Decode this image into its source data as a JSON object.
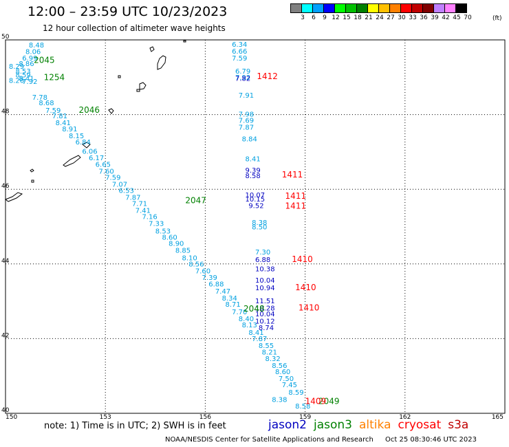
{
  "header": {
    "title": "12:00 – 23:59 UTC 10/23/2023",
    "subtitle": "12 hour collection of altimeter wave heights"
  },
  "legend": {
    "labels": [
      "3",
      "6",
      "9",
      "12",
      "15",
      "18",
      "21",
      "24",
      "27",
      "30",
      "33",
      "36",
      "39",
      "42",
      "45",
      "70"
    ],
    "unit": "(ft)",
    "colors": [
      "#808080",
      "#00ffff",
      "#00a0ff",
      "#0000ff",
      "#00ff00",
      "#00c000",
      "#008000",
      "#ffff00",
      "#ffc000",
      "#ff8000",
      "#ff0000",
      "#c00000",
      "#800000",
      "#c080ff",
      "#ff80ff",
      "#000000"
    ]
  },
  "map": {
    "lon_ticks": [
      "150",
      "153",
      "156",
      "159",
      "162",
      "165"
    ],
    "lat_ticks": [
      "40",
      "42",
      "44",
      "46",
      "48",
      "50"
    ],
    "lon_range": [
      150,
      165
    ],
    "lat_range": [
      40,
      50
    ],
    "grid": true,
    "colors": {
      "jason2": "#0000c0",
      "jason3": "#008000",
      "altika": "#ff8000",
      "cryosat": "#ff0000",
      "s3a": "#c00000",
      "swh_default": "#00a0e0"
    }
  },
  "tracks": [
    {
      "name": "track-west",
      "color": "#00a0e0",
      "points": [
        {
          "lon": 150.7,
          "lat": 49.8,
          "v": "8.48"
        },
        {
          "lon": 150.6,
          "lat": 49.62,
          "v": "8.06"
        },
        {
          "lon": 150.5,
          "lat": 49.45,
          "v": "6.99"
        },
        {
          "lon": 150.4,
          "lat": 49.3,
          "v": "8.86"
        },
        {
          "lon": 150.1,
          "lat": 49.23,
          "v": "8.29"
        },
        {
          "lon": 150.3,
          "lat": 49.1,
          "v": "8.53"
        },
        {
          "lon": 150.3,
          "lat": 49.0,
          "v": "8.59"
        },
        {
          "lon": 150.4,
          "lat": 48.9,
          "v": "8.41"
        },
        {
          "lon": 150.1,
          "lat": 48.85,
          "v": "8.26"
        },
        {
          "lon": 150.5,
          "lat": 48.82,
          "v": "7.92"
        },
        {
          "lon": 150.8,
          "lat": 48.4,
          "v": "7.78"
        },
        {
          "lon": 151.0,
          "lat": 48.25,
          "v": "8.68"
        },
        {
          "lon": 151.2,
          "lat": 48.05,
          "v": "7.59"
        },
        {
          "lon": 151.4,
          "lat": 47.9,
          "v": "7.81"
        },
        {
          "lon": 151.5,
          "lat": 47.72,
          "v": "8.41"
        },
        {
          "lon": 151.7,
          "lat": 47.55,
          "v": "8.91"
        },
        {
          "lon": 151.9,
          "lat": 47.37,
          "v": "8.15"
        },
        {
          "lon": 152.1,
          "lat": 47.2,
          "v": "6.84"
        },
        {
          "lon": 152.3,
          "lat": 46.95,
          "v": "6.06"
        },
        {
          "lon": 152.5,
          "lat": 46.78,
          "v": "6.17"
        },
        {
          "lon": 152.7,
          "lat": 46.6,
          "v": "6.65"
        },
        {
          "lon": 152.8,
          "lat": 46.42,
          "v": "7.60"
        },
        {
          "lon": 153.0,
          "lat": 46.25,
          "v": "7.59"
        },
        {
          "lon": 153.2,
          "lat": 46.07,
          "v": "7.07"
        },
        {
          "lon": 153.4,
          "lat": 45.9,
          "v": "6.53"
        },
        {
          "lon": 153.6,
          "lat": 45.72,
          "v": "7.87"
        },
        {
          "lon": 153.8,
          "lat": 45.55,
          "v": "7.71"
        },
        {
          "lon": 153.9,
          "lat": 45.37,
          "v": "7.41"
        },
        {
          "lon": 154.1,
          "lat": 45.2,
          "v": "7.16"
        },
        {
          "lon": 154.3,
          "lat": 45.02,
          "v": "7.33"
        },
        {
          "lon": 154.5,
          "lat": 44.82,
          "v": "8.53"
        },
        {
          "lon": 154.7,
          "lat": 44.65,
          "v": "8.60"
        },
        {
          "lon": 154.9,
          "lat": 44.48,
          "v": "8.90"
        },
        {
          "lon": 155.1,
          "lat": 44.3,
          "v": "8.85"
        },
        {
          "lon": 155.3,
          "lat": 44.1,
          "v": "8.10"
        },
        {
          "lon": 155.5,
          "lat": 43.93,
          "v": "8.56"
        },
        {
          "lon": 155.7,
          "lat": 43.75,
          "v": "7.60"
        },
        {
          "lon": 155.9,
          "lat": 43.57,
          "v": "7.39"
        },
        {
          "lon": 156.1,
          "lat": 43.4,
          "v": "6.88"
        },
        {
          "lon": 156.3,
          "lat": 43.2,
          "v": "7.47"
        },
        {
          "lon": 156.5,
          "lat": 43.02,
          "v": "8.34"
        },
        {
          "lon": 156.6,
          "lat": 42.85,
          "v": "8.71"
        },
        {
          "lon": 156.8,
          "lat": 42.65,
          "v": "7.70"
        },
        {
          "lon": 157.0,
          "lat": 42.47,
          "v": "8.40"
        },
        {
          "lon": 157.1,
          "lat": 42.3,
          "v": "8.13"
        },
        {
          "lon": 157.3,
          "lat": 42.1,
          "v": "8.41"
        },
        {
          "lon": 157.4,
          "lat": 41.93,
          "v": "7.87"
        },
        {
          "lon": 157.6,
          "lat": 41.75,
          "v": "8.55"
        },
        {
          "lon": 157.7,
          "lat": 41.57,
          "v": "8.21"
        },
        {
          "lon": 157.8,
          "lat": 41.4,
          "v": "8.32"
        },
        {
          "lon": 158.0,
          "lat": 41.22,
          "v": "8.56"
        },
        {
          "lon": 158.1,
          "lat": 41.05,
          "v": "8.60"
        },
        {
          "lon": 158.2,
          "lat": 40.87,
          "v": "7.50"
        },
        {
          "lon": 158.3,
          "lat": 40.7,
          "v": "7.45"
        },
        {
          "lon": 158.5,
          "lat": 40.5,
          "v": "8.59"
        },
        {
          "lon": 158.0,
          "lat": 40.3,
          "v": "8.38"
        },
        {
          "lon": 158.7,
          "lat": 40.13,
          "v": "8.58"
        }
      ]
    },
    {
      "name": "track-east",
      "color": "#00a0e0",
      "points": [
        {
          "lon": 156.8,
          "lat": 49.82,
          "v": "6.34"
        },
        {
          "lon": 156.8,
          "lat": 49.63,
          "v": "6.66"
        },
        {
          "lon": 156.8,
          "lat": 49.45,
          "v": "7.59"
        },
        {
          "lon": 156.9,
          "lat": 49.1,
          "v": "6.79"
        },
        {
          "lon": 156.9,
          "lat": 48.93,
          "v": "7.92"
        },
        {
          "lon": 157.0,
          "lat": 48.45,
          "v": "7.91"
        },
        {
          "lon": 157.0,
          "lat": 47.95,
          "v": "7.98"
        },
        {
          "lon": 157.0,
          "lat": 47.78,
          "v": "7.69"
        },
        {
          "lon": 157.0,
          "lat": 47.6,
          "v": "7.87"
        },
        {
          "lon": 157.1,
          "lat": 47.28,
          "v": "8.84"
        },
        {
          "lon": 157.2,
          "lat": 46.75,
          "v": "8.41"
        },
        {
          "lon": 157.4,
          "lat": 45.05,
          "v": "8.38"
        },
        {
          "lon": 157.4,
          "lat": 44.93,
          "v": "8.50"
        },
        {
          "lon": 157.5,
          "lat": 44.25,
          "v": "7.30"
        }
      ]
    },
    {
      "name": "track-east-jason2",
      "color": "#0000c0",
      "points": [
        {
          "lon": 156.9,
          "lat": 48.9,
          "v": "7.82"
        },
        {
          "lon": 157.2,
          "lat": 46.45,
          "v": "9.39"
        },
        {
          "lon": 157.2,
          "lat": 46.3,
          "v": "8.58"
        },
        {
          "lon": 157.2,
          "lat": 45.78,
          "v": "10.07"
        },
        {
          "lon": 157.2,
          "lat": 45.67,
          "v": "10.15"
        },
        {
          "lon": 157.3,
          "lat": 45.5,
          "v": "9.52"
        },
        {
          "lon": 157.5,
          "lat": 44.05,
          "v": "6.88"
        },
        {
          "lon": 157.5,
          "lat": 43.8,
          "v": "10.38"
        },
        {
          "lon": 157.5,
          "lat": 43.5,
          "v": "10.04"
        },
        {
          "lon": 157.5,
          "lat": 43.3,
          "v": "10.94"
        },
        {
          "lon": 157.5,
          "lat": 42.95,
          "v": "11.51"
        },
        {
          "lon": 157.5,
          "lat": 42.75,
          "v": "10.28"
        },
        {
          "lon": 157.5,
          "lat": 42.6,
          "v": "10.04"
        },
        {
          "lon": 157.5,
          "lat": 42.4,
          "v": "10.12"
        },
        {
          "lon": 157.6,
          "lat": 42.23,
          "v": "8.74"
        }
      ]
    }
  ],
  "passes": [
    {
      "lon": 150.85,
      "lat": 49.38,
      "label": "2045",
      "color": "#008000"
    },
    {
      "lon": 151.15,
      "lat": 48.92,
      "label": "1254",
      "color": "#008000"
    },
    {
      "lon": 152.2,
      "lat": 48.05,
      "label": "2046",
      "color": "#008000"
    },
    {
      "lon": 155.4,
      "lat": 45.63,
      "label": "2047",
      "color": "#008000"
    },
    {
      "lon": 157.15,
      "lat": 42.73,
      "label": "2048",
      "color": "#008000"
    },
    {
      "lon": 159.4,
      "lat": 40.25,
      "label": "2049",
      "color": "#008000"
    },
    {
      "lon": 157.55,
      "lat": 48.95,
      "label": "1412",
      "color": "#ff0000"
    },
    {
      "lon": 158.3,
      "lat": 46.32,
      "label": "1411",
      "color": "#ff0000"
    },
    {
      "lon": 158.4,
      "lat": 45.75,
      "label": "1411",
      "color": "#ff0000"
    },
    {
      "lon": 158.4,
      "lat": 45.48,
      "label": "1411",
      "color": "#ff0000"
    },
    {
      "lon": 158.6,
      "lat": 44.05,
      "label": "1410",
      "color": "#ff0000"
    },
    {
      "lon": 158.7,
      "lat": 43.3,
      "label": "1410",
      "color": "#ff0000"
    },
    {
      "lon": 158.8,
      "lat": 42.75,
      "label": "1410",
      "color": "#ff0000"
    },
    {
      "lon": 159.0,
      "lat": 40.25,
      "label": "1409",
      "color": "#ff0000"
    }
  ],
  "footer": {
    "note": "note: 1) Time is in UTC; 2) SWH is in feet",
    "satellites": [
      {
        "name": "jason2",
        "color": "#0000c0"
      },
      {
        "name": "jason3",
        "color": "#008000"
      },
      {
        "name": "altika",
        "color": "#ff8000"
      },
      {
        "name": "cryosat",
        "color": "#ff0000"
      },
      {
        "name": "s3a",
        "color": "#c00000"
      }
    ],
    "credit": "NOAA/NESDIS Center for Satellite Applications and Research",
    "timestamp": "Oct 25 08:30:46 UTC 2023"
  }
}
